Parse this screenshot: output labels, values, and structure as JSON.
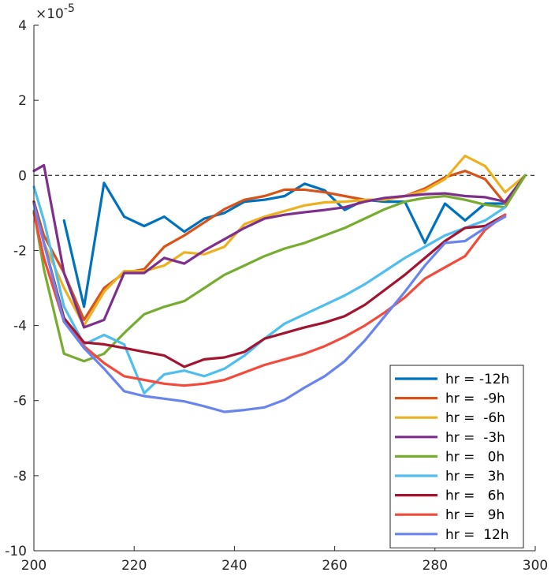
{
  "chart_data": {
    "type": "line",
    "title": "",
    "xlabel": "",
    "ylabel": "",
    "xlim": [
      200,
      300
    ],
    "ylim": [
      -10,
      4
    ],
    "y_exponent_label": "×10",
    "y_exponent_power": "-5",
    "x_ticks": [
      200,
      220,
      240,
      260,
      280,
      300
    ],
    "y_ticks": [
      -10,
      -8,
      -6,
      -4,
      -2,
      0,
      2,
      4
    ],
    "zero_reference_line": "dashed",
    "grid": false,
    "legend_position": "bottom-right",
    "series": [
      {
        "name": "hr = -12h",
        "color": "#0072BD",
        "x": [
          206,
          210,
          214,
          218,
          222,
          226,
          230,
          234,
          238,
          242,
          246,
          250,
          254,
          258,
          262,
          266,
          270,
          274,
          278,
          282,
          286,
          290,
          294,
          298
        ],
        "y": [
          -1.2,
          -3.5,
          -0.2,
          -1.1,
          -1.35,
          -1.1,
          -1.5,
          -1.15,
          -1.0,
          -0.7,
          -0.65,
          -0.55,
          -0.22,
          -0.4,
          -0.92,
          -0.65,
          -0.7,
          -0.7,
          -1.8,
          -0.75,
          -1.2,
          -0.75,
          -0.75,
          0
        ]
      },
      {
        "name": "hr =  -9h",
        "color": "#D95319",
        "x": [
          200,
          202,
          206,
          210,
          214,
          218,
          222,
          226,
          230,
          234,
          238,
          242,
          246,
          250,
          254,
          258,
          262,
          266,
          270,
          274,
          278,
          282,
          286,
          290,
          294,
          298
        ],
        "y": [
          -0.7,
          -1.6,
          -2.6,
          -3.85,
          -3.0,
          -2.6,
          -2.5,
          -1.9,
          -1.6,
          -1.25,
          -0.9,
          -0.65,
          -0.55,
          -0.38,
          -0.38,
          -0.45,
          -0.55,
          -0.65,
          -0.65,
          -0.55,
          -0.35,
          -0.05,
          0.12,
          -0.1,
          -0.75,
          0
        ]
      },
      {
        "name": "hr =  -6h",
        "color": "#EDB120",
        "x": [
          200,
          202,
          206,
          210,
          214,
          218,
          222,
          226,
          230,
          234,
          238,
          242,
          246,
          250,
          254,
          258,
          262,
          266,
          270,
          274,
          278,
          282,
          286,
          290,
          294,
          298
        ],
        "y": [
          -0.75,
          -1.8,
          -3.0,
          -4.0,
          -3.1,
          -2.55,
          -2.55,
          -2.4,
          -2.05,
          -2.1,
          -1.9,
          -1.3,
          -1.1,
          -0.95,
          -0.8,
          -0.72,
          -0.7,
          -0.65,
          -0.65,
          -0.55,
          -0.4,
          -0.1,
          0.52,
          0.25,
          -0.45,
          0
        ]
      },
      {
        "name": "hr =  -3h",
        "color": "#7E2F8E",
        "x": [
          200,
          202,
          206,
          210,
          214,
          218,
          222,
          226,
          230,
          234,
          238,
          242,
          246,
          250,
          254,
          258,
          262,
          266,
          270,
          274,
          278,
          282,
          286,
          290,
          294,
          298
        ],
        "y": [
          0.12,
          0.27,
          -2.6,
          -4.05,
          -3.85,
          -2.6,
          -2.6,
          -2.2,
          -2.35,
          -2.0,
          -1.7,
          -1.4,
          -1.15,
          -1.05,
          -0.98,
          -0.92,
          -0.85,
          -0.7,
          -0.6,
          -0.55,
          -0.5,
          -0.48,
          -0.55,
          -0.58,
          -0.7,
          0
        ]
      },
      {
        "name": "hr =   0h",
        "color": "#77AC30",
        "x": [
          200,
          202,
          206,
          210,
          214,
          218,
          222,
          226,
          230,
          234,
          238,
          242,
          246,
          250,
          254,
          258,
          262,
          266,
          270,
          274,
          278,
          282,
          286,
          290,
          294,
          298
        ],
        "y": [
          -0.95,
          -2.5,
          -4.75,
          -4.95,
          -4.75,
          -4.2,
          -3.7,
          -3.5,
          -3.35,
          -3.0,
          -2.65,
          -2.4,
          -2.15,
          -1.95,
          -1.8,
          -1.6,
          -1.4,
          -1.15,
          -0.9,
          -0.7,
          -0.6,
          -0.55,
          -0.65,
          -0.78,
          -0.85,
          0
        ]
      },
      {
        "name": "hr =   3h",
        "color": "#4DBEEE",
        "x": [
          200,
          202,
          206,
          210,
          214,
          218,
          222,
          226,
          230,
          234,
          238,
          242,
          246,
          250,
          254,
          258,
          262,
          266,
          270,
          274,
          278,
          282,
          286,
          290,
          294
        ],
        "y": [
          -0.3,
          -1.2,
          -3.5,
          -4.5,
          -4.25,
          -4.5,
          -5.8,
          -5.3,
          -5.2,
          -5.35,
          -5.15,
          -4.8,
          -4.35,
          -3.95,
          -3.7,
          -3.45,
          -3.2,
          -2.9,
          -2.55,
          -2.2,
          -1.9,
          -1.6,
          -1.4,
          -1.2,
          -0.85
        ]
      },
      {
        "name": "hr =   6h",
        "color": "#A2142F",
        "x": [
          200,
          202,
          206,
          210,
          214,
          218,
          222,
          226,
          230,
          234,
          238,
          242,
          246,
          250,
          254,
          258,
          262,
          266,
          270,
          274,
          278,
          282,
          286,
          290,
          294
        ],
        "y": [
          -0.7,
          -1.8,
          -3.8,
          -4.45,
          -4.5,
          -4.6,
          -4.7,
          -4.8,
          -5.1,
          -4.9,
          -4.85,
          -4.7,
          -4.35,
          -4.2,
          -4.05,
          -3.92,
          -3.75,
          -3.45,
          -3.05,
          -2.65,
          -2.2,
          -1.75,
          -1.4,
          -1.35,
          -1.05
        ]
      },
      {
        "name": "hr =   9h",
        "color": "#F24B3C",
        "x": [
          200,
          202,
          206,
          210,
          214,
          218,
          222,
          226,
          230,
          234,
          238,
          242,
          246,
          250,
          254,
          258,
          262,
          266,
          270,
          274,
          278,
          282,
          286,
          290,
          294
        ],
        "y": [
          -1.0,
          -2.2,
          -3.9,
          -4.55,
          -5.0,
          -5.35,
          -5.45,
          -5.55,
          -5.6,
          -5.55,
          -5.45,
          -5.25,
          -5.05,
          -4.9,
          -4.75,
          -4.55,
          -4.3,
          -4.0,
          -3.65,
          -3.25,
          -2.75,
          -2.45,
          -2.15,
          -1.45,
          -1.05
        ]
      },
      {
        "name": "hr =  12h",
        "color": "#6A84EE",
        "x": [
          200,
          202,
          206,
          210,
          214,
          218,
          222,
          226,
          230,
          234,
          238,
          242,
          246,
          250,
          254,
          258,
          262,
          266,
          270,
          274,
          278,
          282,
          286,
          290,
          294
        ],
        "y": [
          -0.75,
          -1.8,
          -3.9,
          -4.6,
          -5.15,
          -5.75,
          -5.88,
          -5.95,
          -6.02,
          -6.15,
          -6.3,
          -6.25,
          -6.18,
          -5.98,
          -5.65,
          -5.35,
          -4.95,
          -4.4,
          -3.75,
          -3.1,
          -2.4,
          -1.8,
          -1.75,
          -1.4,
          -1.1
        ]
      }
    ]
  }
}
